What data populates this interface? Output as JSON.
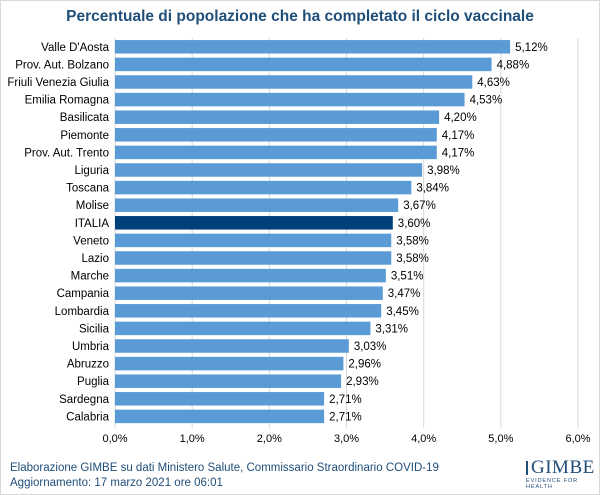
{
  "chart_data": {
    "type": "bar",
    "orientation": "horizontal",
    "title": "Percentuale di popolazione che ha completato il ciclo vaccinale",
    "xlabel": "",
    "ylabel": "",
    "xlim": [
      0,
      6
    ],
    "xticks": [
      0,
      1,
      2,
      3,
      4,
      5,
      6
    ],
    "xtick_labels": [
      "0,0%",
      "1,0%",
      "2,0%",
      "3,0%",
      "4,0%",
      "5,0%",
      "6,0%"
    ],
    "grid": "vertical",
    "legend": "none",
    "categories": [
      "Valle D'Aosta",
      "Prov. Aut. Bolzano",
      "Friuli Venezia Giulia",
      "Emilia Romagna",
      "Basilicata",
      "Piemonte",
      "Prov. Aut. Trento",
      "Liguria",
      "Toscana",
      "Molise",
      "ITALIA",
      "Veneto",
      "Lazio",
      "Marche",
      "Campania",
      "Lombardia",
      "Sicilia",
      "Umbria",
      "Abruzzo",
      "Puglia",
      "Sardegna",
      "Calabria"
    ],
    "values": [
      5.12,
      4.88,
      4.63,
      4.53,
      4.2,
      4.17,
      4.17,
      3.98,
      3.84,
      3.67,
      3.6,
      3.58,
      3.58,
      3.51,
      3.47,
      3.45,
      3.31,
      3.03,
      2.96,
      2.93,
      2.71,
      2.71
    ],
    "value_labels": [
      "5,12%",
      "4,88%",
      "4,63%",
      "4,53%",
      "4,20%",
      "4,17%",
      "4,17%",
      "3,98%",
      "3,84%",
      "3,67%",
      "3,60%",
      "3,58%",
      "3,58%",
      "3,51%",
      "3,47%",
      "3,45%",
      "3,31%",
      "3,03%",
      "2,96%",
      "2,93%",
      "2,71%",
      "2,71%"
    ],
    "highlight": "ITALIA",
    "colors": {
      "bar": "#5b9bd5",
      "highlight": "#003f7a",
      "grid": "#d9d9d9"
    }
  },
  "footer": {
    "line1": "Elaborazione GIMBE su dati Ministero Salute, Commissario Straordinario COVID-19",
    "line2": "Aggiornamento: 17 marzo 2021 ore 06:01"
  },
  "logo": {
    "name": "GIMBE",
    "tagline": "EVIDENCE FOR HEALTH"
  }
}
